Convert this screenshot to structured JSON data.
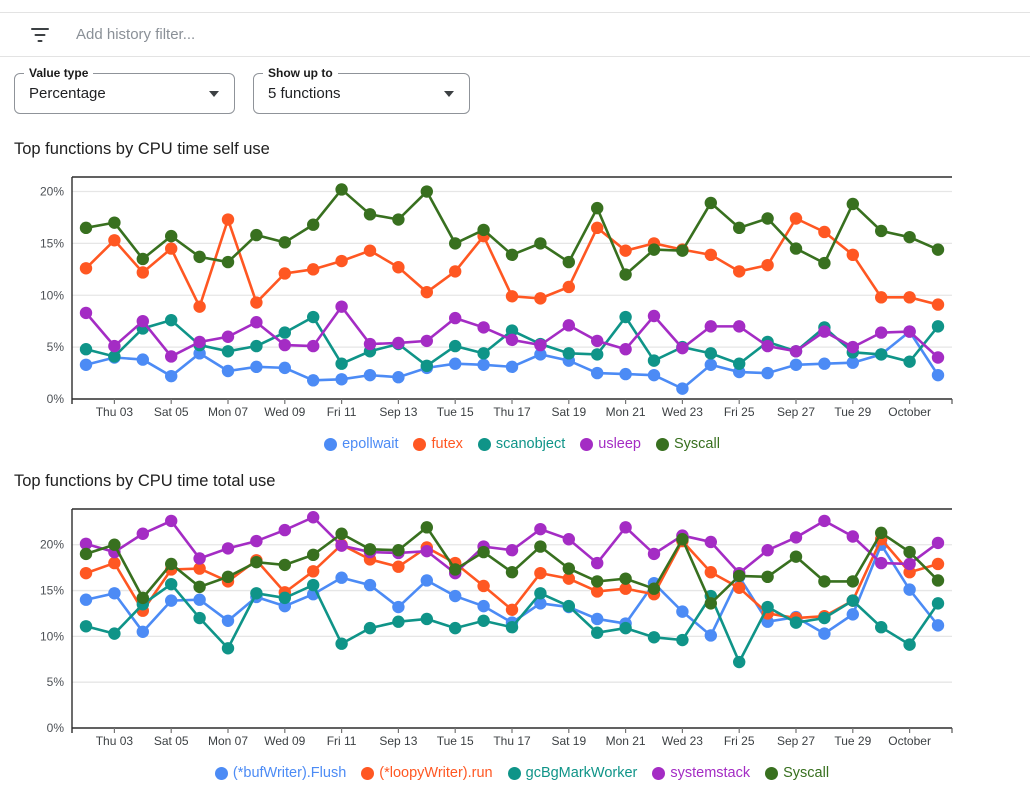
{
  "filter_bar": {
    "icon": "filter-list",
    "placeholder": "Add history filter..."
  },
  "controls": [
    {
      "label": "Value type",
      "value": "Percentage"
    },
    {
      "label": "Show up to",
      "value": "5 functions"
    }
  ],
  "chart_data": [
    {
      "type": "line",
      "title": "Top functions by CPU time self use",
      "xlabel": "",
      "ylabel": "",
      "grid": true,
      "legend_position": "bottom",
      "ylim": [
        0,
        21.4
      ],
      "y_tick_values": [
        0,
        5,
        10,
        15,
        20
      ],
      "y_tick_labels": [
        "0%",
        "5%",
        "10%",
        "15%",
        "20%"
      ],
      "x_tick_indices": [
        1,
        3,
        5,
        7,
        9,
        11,
        13,
        15,
        17,
        19,
        21,
        23,
        25,
        27,
        29
      ],
      "x_tick_labels": [
        "Thu 03",
        "Sat 05",
        "Mon 07",
        "Wed 09",
        "Fri 11",
        "Sep 13",
        "Tue 15",
        "Thu 17",
        "Sat 19",
        "Mon 21",
        "Wed 23",
        "Fri 25",
        "Sep 27",
        "Tue 29",
        "October"
      ],
      "series": [
        {
          "name": "epollwait",
          "color": "#4c8bf5",
          "values": [
            3.3,
            4.0,
            3.8,
            2.2,
            4.4,
            2.7,
            3.1,
            3.0,
            1.8,
            1.9,
            2.3,
            2.1,
            3.0,
            3.4,
            3.3,
            3.1,
            4.3,
            3.7,
            2.5,
            2.4,
            2.3,
            1.0,
            3.3,
            2.6,
            2.5,
            3.3,
            3.4,
            3.5,
            4.3,
            6.5,
            2.3
          ]
        },
        {
          "name": "futex",
          "color": "#ff5722",
          "values": [
            12.6,
            15.3,
            12.2,
            14.5,
            8.9,
            17.3,
            9.3,
            12.1,
            12.5,
            13.3,
            14.3,
            12.7,
            10.3,
            12.3,
            15.7,
            9.9,
            9.7,
            10.8,
            16.5,
            14.3,
            15.0,
            14.4,
            13.9,
            12.3,
            12.9,
            17.4,
            16.1,
            13.9,
            9.8,
            9.8,
            9.1
          ]
        },
        {
          "name": "scanobject",
          "color": "#0f9488",
          "values": [
            4.8,
            4.1,
            6.8,
            7.6,
            5.2,
            4.6,
            5.1,
            6.4,
            7.9,
            3.4,
            4.6,
            5.3,
            3.2,
            5.1,
            4.4,
            6.6,
            5.3,
            4.4,
            4.3,
            7.9,
            3.7,
            5.0,
            4.4,
            3.4,
            5.5,
            4.6,
            6.9,
            4.5,
            4.3,
            3.6,
            7.0
          ]
        },
        {
          "name": "usleep",
          "color": "#a42cc4",
          "values": [
            8.3,
            5.1,
            7.5,
            4.1,
            5.5,
            6.0,
            7.4,
            5.2,
            5.1,
            8.9,
            5.3,
            5.4,
            5.6,
            7.8,
            6.9,
            5.7,
            5.2,
            7.1,
            5.6,
            4.8,
            8.0,
            4.9,
            7.0,
            7.0,
            5.1,
            4.6,
            6.5,
            5.0,
            6.4,
            6.5,
            4.0
          ]
        },
        {
          "name": "Syscall",
          "color": "#38701f",
          "values": [
            16.5,
            17.0,
            13.5,
            15.7,
            13.7,
            13.2,
            15.8,
            15.1,
            16.8,
            20.2,
            17.8,
            17.3,
            20.0,
            15.0,
            16.3,
            13.9,
            15.0,
            13.2,
            18.4,
            12.0,
            14.4,
            14.3,
            18.9,
            16.5,
            17.4,
            14.5,
            13.1,
            18.8,
            16.2,
            15.6,
            14.4
          ]
        }
      ]
    },
    {
      "type": "line",
      "title": "Top functions by CPU time total use",
      "xlabel": "",
      "ylabel": "",
      "grid": true,
      "legend_position": "bottom",
      "ylim": [
        0,
        23.9
      ],
      "y_tick_values": [
        0,
        5,
        10,
        15,
        20
      ],
      "y_tick_labels": [
        "0%",
        "5%",
        "10%",
        "15%",
        "20%"
      ],
      "x_tick_indices": [
        1,
        3,
        5,
        7,
        9,
        11,
        13,
        15,
        17,
        19,
        21,
        23,
        25,
        27,
        29
      ],
      "x_tick_labels": [
        "Thu 03",
        "Sat 05",
        "Mon 07",
        "Wed 09",
        "Fri 11",
        "Sep 13",
        "Tue 15",
        "Thu 17",
        "Sat 19",
        "Mon 21",
        "Wed 23",
        "Fri 25",
        "Sep 27",
        "Tue 29",
        "October"
      ],
      "series": [
        {
          "name": "(*bufWriter).Flush",
          "color": "#4c8bf5",
          "values": [
            14.0,
            14.7,
            10.5,
            13.9,
            14.0,
            11.7,
            14.3,
            13.3,
            14.6,
            16.4,
            15.6,
            13.2,
            16.1,
            14.4,
            13.3,
            11.5,
            13.6,
            13.2,
            11.9,
            11.4,
            15.8,
            12.7,
            10.1,
            16.5,
            11.6,
            12.1,
            10.3,
            12.4,
            20.0,
            15.1,
            11.2
          ]
        },
        {
          "name": "(*loopyWriter).run",
          "color": "#ff5722",
          "values": [
            16.9,
            18.0,
            12.8,
            17.3,
            17.4,
            16.0,
            18.3,
            14.8,
            17.1,
            20.0,
            18.4,
            17.6,
            19.7,
            18.0,
            15.5,
            12.9,
            16.9,
            16.3,
            14.9,
            15.2,
            14.6,
            20.4,
            17.0,
            15.3,
            12.5,
            12.0,
            12.2,
            13.9,
            20.6,
            17.0,
            17.9
          ]
        },
        {
          "name": "gcBgMarkWorker",
          "color": "#0f9488",
          "values": [
            11.1,
            10.3,
            13.5,
            15.7,
            12.0,
            8.7,
            14.7,
            14.2,
            15.6,
            9.2,
            10.9,
            11.6,
            11.9,
            10.9,
            11.7,
            11.0,
            14.7,
            13.3,
            10.4,
            10.9,
            9.9,
            9.6,
            14.4,
            7.2,
            13.2,
            11.5,
            12.0,
            13.9,
            11.0,
            9.1,
            13.6
          ]
        },
        {
          "name": "systemstack",
          "color": "#a42cc4",
          "values": [
            20.1,
            19.2,
            21.2,
            22.6,
            18.5,
            19.6,
            20.4,
            21.6,
            23.0,
            19.9,
            19.2,
            19.1,
            19.3,
            16.9,
            19.8,
            19.4,
            21.7,
            20.6,
            18.0,
            21.9,
            19.0,
            21.0,
            20.3,
            16.9,
            19.4,
            20.8,
            22.6,
            20.9,
            18.0,
            17.9,
            20.2
          ]
        },
        {
          "name": "Syscall",
          "color": "#38701f",
          "values": [
            19.0,
            20.0,
            14.2,
            17.9,
            15.4,
            16.5,
            18.1,
            17.8,
            18.9,
            21.2,
            19.5,
            19.4,
            21.9,
            17.3,
            19.2,
            17.0,
            19.8,
            17.4,
            16.0,
            16.3,
            15.2,
            20.6,
            13.6,
            16.6,
            16.5,
            18.7,
            16.0,
            16.0,
            21.3,
            19.2,
            16.1
          ]
        }
      ]
    }
  ]
}
